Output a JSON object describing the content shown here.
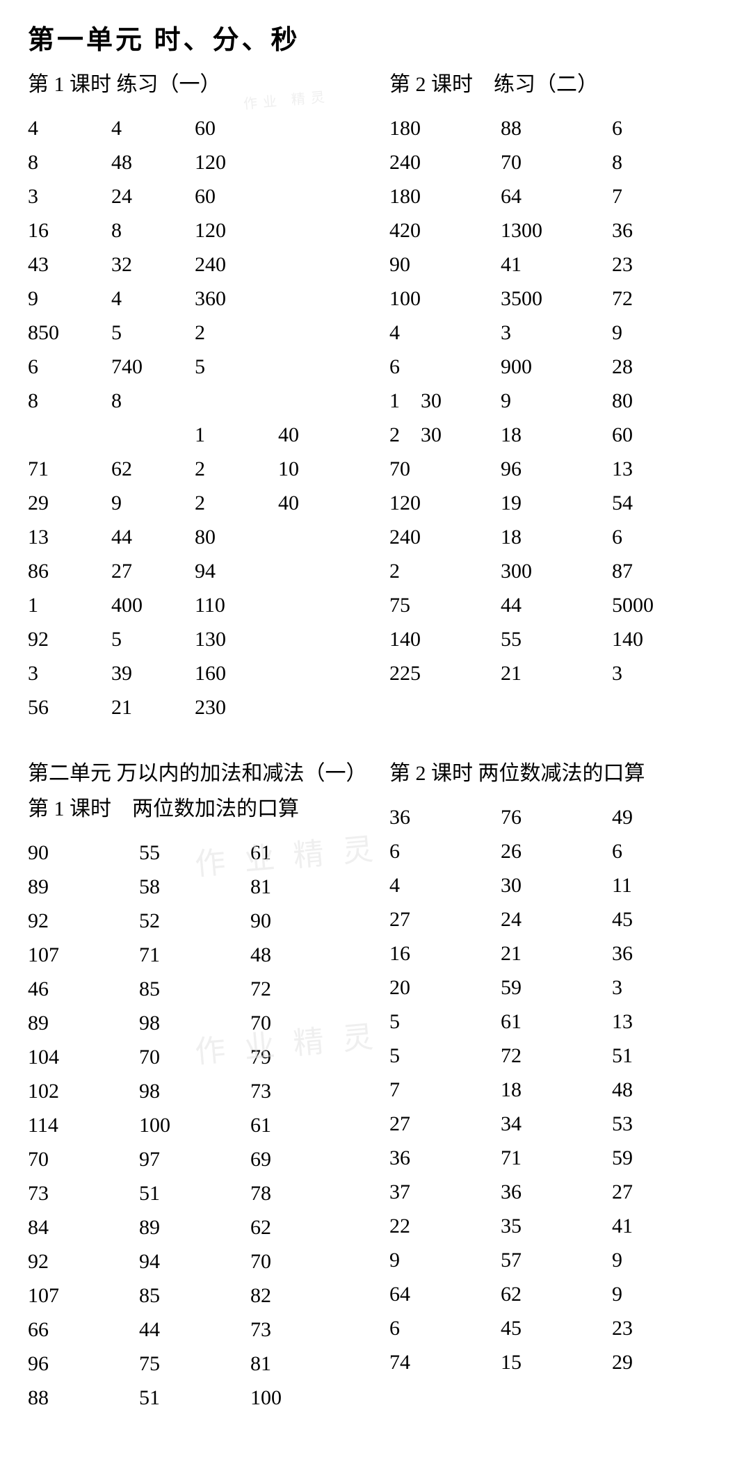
{
  "unit1": {
    "title": "第一单元 时、分、秒",
    "lesson1": {
      "title": "第 1 课时 练习（一）",
      "rows": [
        [
          "4",
          "4",
          "60",
          ""
        ],
        [
          "8",
          "48",
          "120",
          ""
        ],
        [
          "3",
          "24",
          "60",
          ""
        ],
        [
          "16",
          "8",
          "120",
          ""
        ],
        [
          "43",
          "32",
          "240",
          ""
        ],
        [
          "9",
          "4",
          "360",
          ""
        ],
        [
          "850",
          "5",
          "2",
          ""
        ],
        [
          "6",
          "740",
          "5",
          ""
        ],
        [
          "8",
          "8",
          "",
          ""
        ],
        [
          "",
          "",
          "1",
          "40"
        ],
        [
          "71",
          "62",
          "2",
          "10"
        ],
        [
          "29",
          "9",
          "2",
          "40"
        ],
        [
          "13",
          "44",
          "80",
          ""
        ],
        [
          "86",
          "27",
          "94",
          ""
        ],
        [
          "1",
          "400",
          "110",
          ""
        ],
        [
          "92",
          "5",
          "130",
          ""
        ],
        [
          "3",
          "39",
          "160",
          ""
        ],
        [
          "56",
          "21",
          "230",
          ""
        ]
      ]
    },
    "lesson2": {
      "title": "第 2 课时　练习（二）",
      "rows": [
        [
          "180",
          "88",
          "6",
          ""
        ],
        [
          "240",
          "70",
          "8",
          ""
        ],
        [
          "180",
          "64",
          "7",
          ""
        ],
        [
          "420",
          "1300",
          "36",
          ""
        ],
        [
          "90",
          "41",
          "23",
          ""
        ],
        [
          "100",
          "3500",
          "72",
          ""
        ],
        [
          "4",
          "3",
          "9",
          ""
        ],
        [
          "6",
          "900",
          "28",
          ""
        ],
        [
          "1　30",
          "9",
          "80",
          ""
        ],
        [
          "2　30",
          "18",
          "60",
          ""
        ],
        [
          "70",
          "96",
          "13",
          ""
        ],
        [
          "120",
          "19",
          "54",
          ""
        ],
        [
          "240",
          "18",
          "6",
          ""
        ],
        [
          "2",
          "300",
          "87",
          ""
        ],
        [
          "75",
          "44",
          "5000",
          ""
        ],
        [
          "140",
          "55",
          "140",
          ""
        ],
        [
          "225",
          "21",
          "3",
          ""
        ]
      ]
    }
  },
  "unit2": {
    "title": "第二单元 万以内的加法和减法（一）",
    "lesson1": {
      "title": "第 1 课时　两位数加法的口算",
      "rows": [
        [
          "90",
          "55",
          "61"
        ],
        [
          "89",
          "58",
          "81"
        ],
        [
          "92",
          "52",
          "90"
        ],
        [
          "107",
          "71",
          "48"
        ],
        [
          "46",
          "85",
          "72"
        ],
        [
          "89",
          "98",
          "70"
        ],
        [
          "104",
          "70",
          "79"
        ],
        [
          "102",
          "98",
          "73"
        ],
        [
          "114",
          "100",
          "61"
        ],
        [
          "70",
          "97",
          "69"
        ],
        [
          "73",
          "51",
          "78"
        ],
        [
          "84",
          "89",
          "62"
        ],
        [
          "92",
          "94",
          "70"
        ],
        [
          "107",
          "85",
          "82"
        ],
        [
          "66",
          "44",
          "73"
        ],
        [
          "96",
          "75",
          "81"
        ],
        [
          "88",
          "51",
          "100"
        ]
      ]
    },
    "lesson2": {
      "title": "第 2 课时 两位数减法的口算",
      "rows": [
        [
          "36",
          "76",
          "49"
        ],
        [
          "6",
          "26",
          "6"
        ],
        [
          "4",
          "30",
          "11"
        ],
        [
          "27",
          "24",
          "45"
        ],
        [
          "16",
          "21",
          "36"
        ],
        [
          "20",
          "59",
          "3"
        ],
        [
          "5",
          "61",
          "13"
        ],
        [
          "5",
          "72",
          "51"
        ],
        [
          "7",
          "18",
          "48"
        ],
        [
          "27",
          "34",
          "53"
        ],
        [
          "36",
          "71",
          "59"
        ],
        [
          "37",
          "36",
          "27"
        ],
        [
          "22",
          "35",
          "41"
        ],
        [
          "9",
          "57",
          "9"
        ],
        [
          "64",
          "62",
          "9"
        ],
        [
          "6",
          "45",
          "23"
        ],
        [
          "74",
          "15",
          "29"
        ]
      ]
    }
  },
  "watermarks": {
    "top": "作业 精灵",
    "mid1": "作 业 精 灵",
    "mid2": "作 业 精 灵"
  },
  "styling": {
    "background_color": "#ffffff",
    "text_color": "#000000",
    "font_family": "SimSun",
    "title_fontsize": 38,
    "subtitle_fontsize": 30,
    "cell_fontsize": 30,
    "watermark_color": "#e0e0e0"
  }
}
